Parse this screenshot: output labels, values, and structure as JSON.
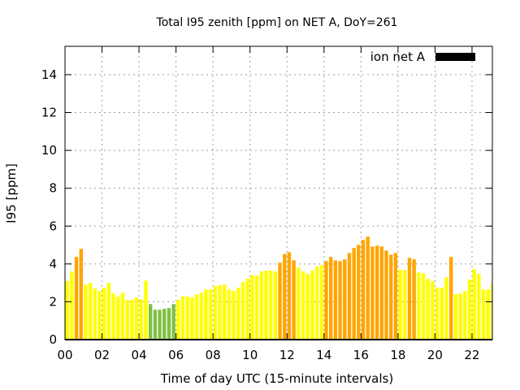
{
  "chart_data": {
    "type": "bar",
    "title": "Total I95 zenith [ppm] on NET A, DoY=261",
    "xlabel": "Time of day UTC (15-minute intervals)",
    "ylabel": "I95 [ppm]",
    "xlim": [
      0,
      23.1
    ],
    "ylim": [
      0,
      15.5
    ],
    "grid": true,
    "legend": {
      "placement": "top-right",
      "entries": [
        {
          "label": "ion net A",
          "color": "#000000"
        }
      ]
    },
    "xticks": [
      "00",
      "02",
      "04",
      "06",
      "08",
      "10",
      "12",
      "14",
      "16",
      "18",
      "20",
      "22"
    ],
    "yticks": [
      "0",
      "2",
      "4",
      "6",
      "8",
      "10",
      "12",
      "14"
    ],
    "colors": {
      "low": "#80c040",
      "normal": "#ffff00",
      "high": "#ffa500"
    },
    "thresholds": {
      "low_below": 2,
      "high_at_or_above": 4
    },
    "interval_hours": 0.25,
    "values": [
      3.1,
      3.6,
      4.37,
      4.8,
      2.9,
      3.0,
      2.7,
      2.57,
      2.74,
      3.0,
      2.44,
      2.27,
      2.48,
      2.1,
      2.1,
      2.23,
      2.14,
      3.12,
      1.88,
      1.58,
      1.58,
      1.63,
      1.67,
      1.88,
      2.1,
      2.3,
      2.27,
      2.23,
      2.4,
      2.48,
      2.65,
      2.65,
      2.83,
      2.87,
      2.91,
      2.65,
      2.57,
      2.74,
      3.05,
      3.22,
      3.39,
      3.39,
      3.6,
      3.65,
      3.65,
      3.6,
      4.07,
      4.53,
      4.62,
      4.19,
      3.81,
      3.6,
      3.47,
      3.65,
      3.85,
      3.94,
      4.15,
      4.37,
      4.19,
      4.15,
      4.24,
      4.58,
      4.84,
      5.01,
      5.27,
      5.44,
      4.92,
      4.97,
      4.92,
      4.71,
      4.49,
      4.58,
      3.68,
      3.68,
      4.32,
      4.24,
      3.55,
      3.51,
      3.22,
      3.08,
      2.74,
      2.74,
      3.3,
      4.37,
      2.4,
      2.44,
      2.57,
      3.17,
      3.72,
      3.47,
      2.65,
      2.65,
      2.95
    ]
  }
}
